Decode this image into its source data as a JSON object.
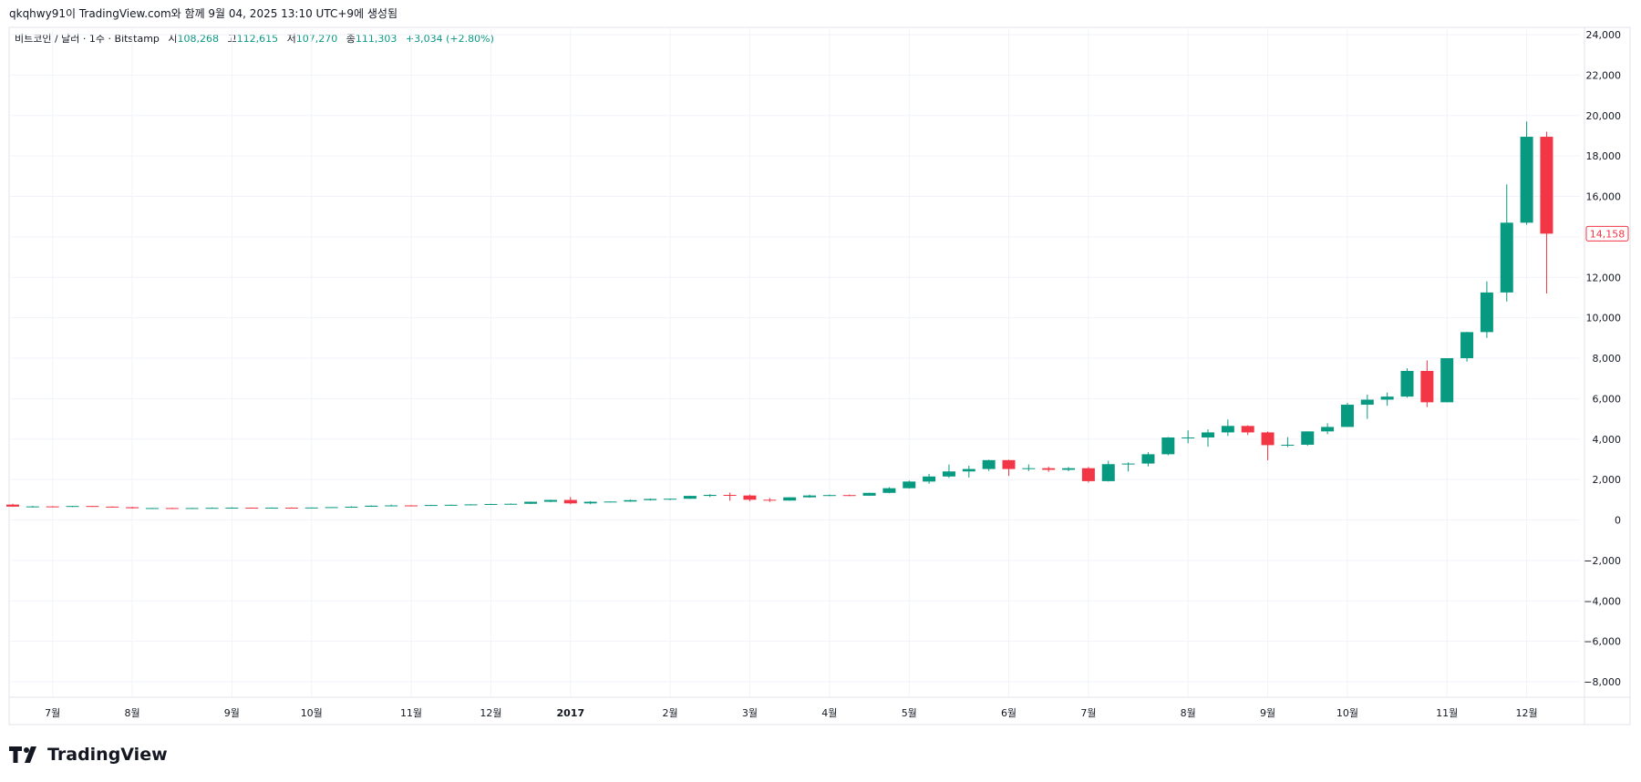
{
  "header": {
    "caption": "qkqhwy91이 TradingView.com와 함께 9월 04, 2025 13:10 UTC+9에 생성됨"
  },
  "legend": {
    "symbol": "비트코인 / 달러 · 1주 · Bitstamp",
    "open_label": "시",
    "open_value": "108,268",
    "high_label": "고",
    "high_value": "112,615",
    "low_label": "저",
    "low_value": "107,270",
    "close_label": "종",
    "close_value": "111,303",
    "change": "+3,034 (+2.80%)"
  },
  "price_badge": "14,158",
  "branding": {
    "logo_text": "TradingView"
  },
  "colors": {
    "up": "#089981",
    "down": "#f23645",
    "grid": "#f0f3fa",
    "text": "#131722"
  },
  "chart_data": {
    "type": "candlestick",
    "title": "비트코인 / 달러 · 1주 · Bitstamp",
    "ylim": [
      -9000,
      24500
    ],
    "yticks": [
      24000,
      22000,
      20000,
      18000,
      16000,
      14000,
      12000,
      10000,
      8000,
      6000,
      4000,
      2000,
      0,
      -2000,
      -4000,
      -6000,
      -8000
    ],
    "ytick_labels": [
      "24,000",
      "22,000",
      "20,000",
      "18,000",
      "16,000",
      "14,000",
      "12,000",
      "10,000",
      "8,000",
      "6,000",
      "4,000",
      "2,000",
      "0",
      "−2,000",
      "−4,000",
      "−6,000",
      "−8,000"
    ],
    "xticks": [
      {
        "label": "7월",
        "idx": 2,
        "bold": false
      },
      {
        "label": "8월",
        "idx": 6,
        "bold": false
      },
      {
        "label": "9월",
        "idx": 11,
        "bold": false
      },
      {
        "label": "10월",
        "idx": 15,
        "bold": false
      },
      {
        "label": "11월",
        "idx": 20,
        "bold": false
      },
      {
        "label": "12월",
        "idx": 24,
        "bold": false
      },
      {
        "label": "2017",
        "idx": 28,
        "bold": true
      },
      {
        "label": "2월",
        "idx": 33,
        "bold": false
      },
      {
        "label": "3월",
        "idx": 37,
        "bold": false
      },
      {
        "label": "4월",
        "idx": 41,
        "bold": false
      },
      {
        "label": "5월",
        "idx": 45,
        "bold": false
      },
      {
        "label": "6월",
        "idx": 50,
        "bold": false
      },
      {
        "label": "7월",
        "idx": 54,
        "bold": false
      },
      {
        "label": "8월",
        "idx": 59,
        "bold": false
      },
      {
        "label": "9월",
        "idx": 63,
        "bold": false
      },
      {
        "label": "10월",
        "idx": 67,
        "bold": false
      },
      {
        "label": "11월",
        "idx": 72,
        "bold": false
      },
      {
        "label": "12월",
        "idx": 76,
        "bold": false
      }
    ],
    "last_close": 14158,
    "candles": [
      {
        "o": 760,
        "h": 800,
        "l": 650,
        "c": 660
      },
      {
        "o": 660,
        "h": 700,
        "l": 620,
        "c": 670
      },
      {
        "o": 670,
        "h": 690,
        "l": 640,
        "c": 660
      },
      {
        "o": 660,
        "h": 700,
        "l": 640,
        "c": 690
      },
      {
        "o": 690,
        "h": 700,
        "l": 650,
        "c": 660
      },
      {
        "o": 660,
        "h": 670,
        "l": 610,
        "c": 630
      },
      {
        "o": 630,
        "h": 650,
        "l": 560,
        "c": 580
      },
      {
        "o": 580,
        "h": 600,
        "l": 560,
        "c": 590
      },
      {
        "o": 590,
        "h": 610,
        "l": 560,
        "c": 570
      },
      {
        "o": 570,
        "h": 600,
        "l": 560,
        "c": 590
      },
      {
        "o": 590,
        "h": 620,
        "l": 580,
        "c": 600
      },
      {
        "o": 600,
        "h": 630,
        "l": 590,
        "c": 610
      },
      {
        "o": 610,
        "h": 620,
        "l": 590,
        "c": 600
      },
      {
        "o": 600,
        "h": 620,
        "l": 590,
        "c": 610
      },
      {
        "o": 610,
        "h": 620,
        "l": 600,
        "c": 605
      },
      {
        "o": 605,
        "h": 620,
        "l": 600,
        "c": 615
      },
      {
        "o": 615,
        "h": 640,
        "l": 610,
        "c": 635
      },
      {
        "o": 635,
        "h": 680,
        "l": 630,
        "c": 655
      },
      {
        "o": 655,
        "h": 720,
        "l": 650,
        "c": 705
      },
      {
        "o": 705,
        "h": 760,
        "l": 690,
        "c": 720
      },
      {
        "o": 720,
        "h": 740,
        "l": 680,
        "c": 700
      },
      {
        "o": 700,
        "h": 750,
        "l": 700,
        "c": 740
      },
      {
        "o": 740,
        "h": 760,
        "l": 720,
        "c": 750
      },
      {
        "o": 750,
        "h": 780,
        "l": 740,
        "c": 770
      },
      {
        "o": 770,
        "h": 800,
        "l": 760,
        "c": 790
      },
      {
        "o": 790,
        "h": 820,
        "l": 770,
        "c": 800
      },
      {
        "o": 800,
        "h": 910,
        "l": 790,
        "c": 900
      },
      {
        "o": 900,
        "h": 1000,
        "l": 880,
        "c": 990
      },
      {
        "o": 990,
        "h": 1140,
        "l": 780,
        "c": 820
      },
      {
        "o": 820,
        "h": 930,
        "l": 780,
        "c": 900
      },
      {
        "o": 900,
        "h": 920,
        "l": 880,
        "c": 910
      },
      {
        "o": 910,
        "h": 1010,
        "l": 900,
        "c": 980
      },
      {
        "o": 980,
        "h": 1060,
        "l": 960,
        "c": 1040
      },
      {
        "o": 1040,
        "h": 1060,
        "l": 980,
        "c": 1050
      },
      {
        "o": 1050,
        "h": 1200,
        "l": 1040,
        "c": 1190
      },
      {
        "o": 1190,
        "h": 1280,
        "l": 1130,
        "c": 1240
      },
      {
        "o": 1240,
        "h": 1350,
        "l": 950,
        "c": 1210
      },
      {
        "o": 1210,
        "h": 1260,
        "l": 920,
        "c": 1000
      },
      {
        "o": 1000,
        "h": 1090,
        "l": 890,
        "c": 960
      },
      {
        "o": 960,
        "h": 1130,
        "l": 950,
        "c": 1120
      },
      {
        "o": 1120,
        "h": 1250,
        "l": 1100,
        "c": 1210
      },
      {
        "o": 1210,
        "h": 1260,
        "l": 1180,
        "c": 1230
      },
      {
        "o": 1230,
        "h": 1260,
        "l": 1180,
        "c": 1200
      },
      {
        "o": 1200,
        "h": 1350,
        "l": 1190,
        "c": 1340
      },
      {
        "o": 1340,
        "h": 1620,
        "l": 1320,
        "c": 1570
      },
      {
        "o": 1570,
        "h": 1950,
        "l": 1550,
        "c": 1900
      },
      {
        "o": 1900,
        "h": 2280,
        "l": 1790,
        "c": 2150
      },
      {
        "o": 2150,
        "h": 2740,
        "l": 2080,
        "c": 2400
      },
      {
        "o": 2400,
        "h": 2680,
        "l": 2100,
        "c": 2520
      },
      {
        "o": 2520,
        "h": 2980,
        "l": 2420,
        "c": 2960
      },
      {
        "o": 2960,
        "h": 2980,
        "l": 2180,
        "c": 2520
      },
      {
        "o": 2520,
        "h": 2750,
        "l": 2420,
        "c": 2560
      },
      {
        "o": 2560,
        "h": 2640,
        "l": 2380,
        "c": 2480
      },
      {
        "o": 2480,
        "h": 2620,
        "l": 2410,
        "c": 2560
      },
      {
        "o": 2560,
        "h": 2620,
        "l": 1850,
        "c": 1920
      },
      {
        "o": 1920,
        "h": 2930,
        "l": 1900,
        "c": 2760
      },
      {
        "o": 2760,
        "h": 2850,
        "l": 2400,
        "c": 2790
      },
      {
        "o": 2790,
        "h": 3350,
        "l": 2650,
        "c": 3250
      },
      {
        "o": 3250,
        "h": 4100,
        "l": 3200,
        "c": 4080
      },
      {
        "o": 4080,
        "h": 4430,
        "l": 3790,
        "c": 4080
      },
      {
        "o": 4080,
        "h": 4480,
        "l": 3620,
        "c": 4330
      },
      {
        "o": 4330,
        "h": 4970,
        "l": 4150,
        "c": 4650
      },
      {
        "o": 4650,
        "h": 4680,
        "l": 4200,
        "c": 4330
      },
      {
        "o": 4330,
        "h": 4380,
        "l": 2950,
        "c": 3700
      },
      {
        "o": 3700,
        "h": 4100,
        "l": 3600,
        "c": 3720
      },
      {
        "o": 3720,
        "h": 4380,
        "l": 3670,
        "c": 4380
      },
      {
        "o": 4380,
        "h": 4780,
        "l": 4240,
        "c": 4600
      },
      {
        "o": 4600,
        "h": 5790,
        "l": 4600,
        "c": 5700
      },
      {
        "o": 5700,
        "h": 6200,
        "l": 5000,
        "c": 5950
      },
      {
        "o": 5950,
        "h": 6300,
        "l": 5650,
        "c": 6100
      },
      {
        "o": 6100,
        "h": 7500,
        "l": 6050,
        "c": 7370
      },
      {
        "o": 7370,
        "h": 7890,
        "l": 5580,
        "c": 5820
      },
      {
        "o": 5820,
        "h": 8000,
        "l": 5820,
        "c": 8000
      },
      {
        "o": 8000,
        "h": 9300,
        "l": 7830,
        "c": 9290
      },
      {
        "o": 9290,
        "h": 11800,
        "l": 9000,
        "c": 11250
      },
      {
        "o": 11250,
        "h": 16600,
        "l": 10800,
        "c": 14700
      },
      {
        "o": 14700,
        "h": 19700,
        "l": 14600,
        "c": 18950
      },
      {
        "o": 18950,
        "h": 19200,
        "l": 11200,
        "c": 14158
      }
    ]
  }
}
